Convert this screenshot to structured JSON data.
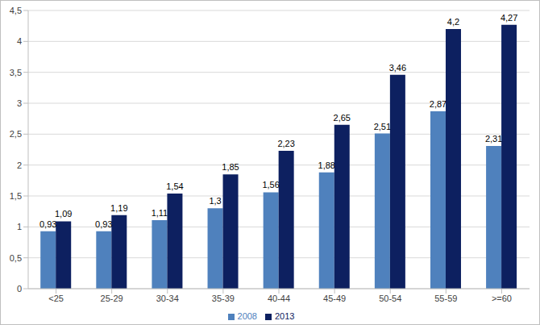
{
  "chart_data": {
    "type": "bar",
    "categories": [
      "<25",
      "25-29",
      "30-34",
      "35-39",
      "40-44",
      "45-49",
      "50-54",
      "55-59",
      ">=60"
    ],
    "series": [
      {
        "name": "2008",
        "color": "#4f81bd",
        "values": [
          0.93,
          0.93,
          1.11,
          1.3,
          1.56,
          1.88,
          2.51,
          2.87,
          2.31
        ],
        "value_labels": [
          "0,93",
          "0,93",
          "1,11",
          "1,3",
          "1,56",
          "1,88",
          "2,51",
          "2,87",
          "2,31"
        ]
      },
      {
        "name": "2013",
        "color": "#0d2060",
        "values": [
          1.09,
          1.19,
          1.54,
          1.85,
          2.23,
          2.65,
          3.46,
          4.2,
          4.27
        ],
        "value_labels": [
          "1,09",
          "1,19",
          "1,54",
          "1,85",
          "2,23",
          "2,65",
          "3,46",
          "4,2",
          "4,27"
        ]
      }
    ],
    "ylim": [
      0,
      4.5
    ],
    "yticks": [
      0,
      {
        "value": 0.5,
        "label": "0,5"
      },
      1,
      {
        "value": 1.5,
        "label": "1,5"
      },
      2,
      {
        "value": 2.5,
        "label": "2,5"
      },
      3,
      {
        "value": 3.5,
        "label": "3,5"
      },
      4,
      {
        "value": 4.5,
        "label": "4,5"
      }
    ],
    "grid": true,
    "legend": "bottom",
    "data_labels": true
  }
}
